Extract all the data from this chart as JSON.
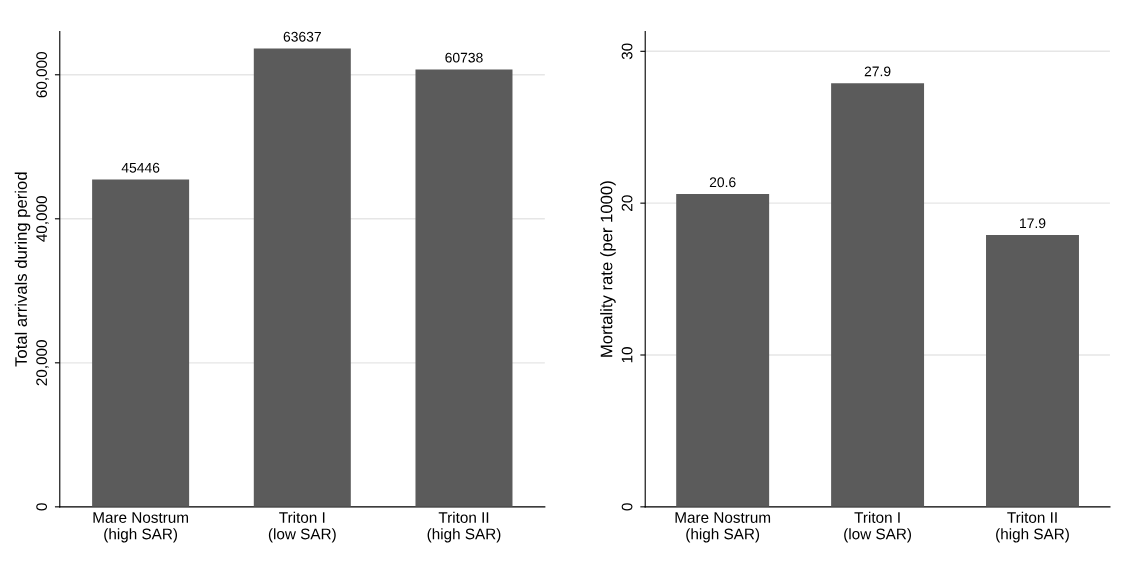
{
  "chart_data": [
    {
      "type": "bar",
      "ylabel": "Total arrivals during period",
      "categories": [
        "Mare Nostrum\n(high SAR)",
        "Triton I\n(low SAR)",
        "Triton II\n(high SAR)"
      ],
      "values": [
        45446,
        63637,
        60738
      ],
      "color": "#5b5b5b",
      "ylim": [
        0,
        66000
      ],
      "yticks": [
        0,
        {
          "value": 20000,
          "label": "20,000"
        },
        {
          "value": 40000,
          "label": "40,000"
        },
        {
          "value": 60000,
          "label": "60,000"
        }
      ],
      "grid": "y",
      "data_labels": true
    },
    {
      "type": "bar",
      "ylabel": "Mortality rate (per 1000)",
      "categories": [
        "Mare Nostrum\n(high SAR)",
        "Triton I\n(low SAR)",
        "Triton II\n(high SAR)"
      ],
      "values": [
        20.6,
        27.9,
        17.9
      ],
      "color": "#5b5b5b",
      "ylim": [
        0,
        31.3
      ],
      "yticks": [
        0,
        10,
        20,
        30
      ],
      "grid": "y",
      "data_labels": true
    }
  ]
}
